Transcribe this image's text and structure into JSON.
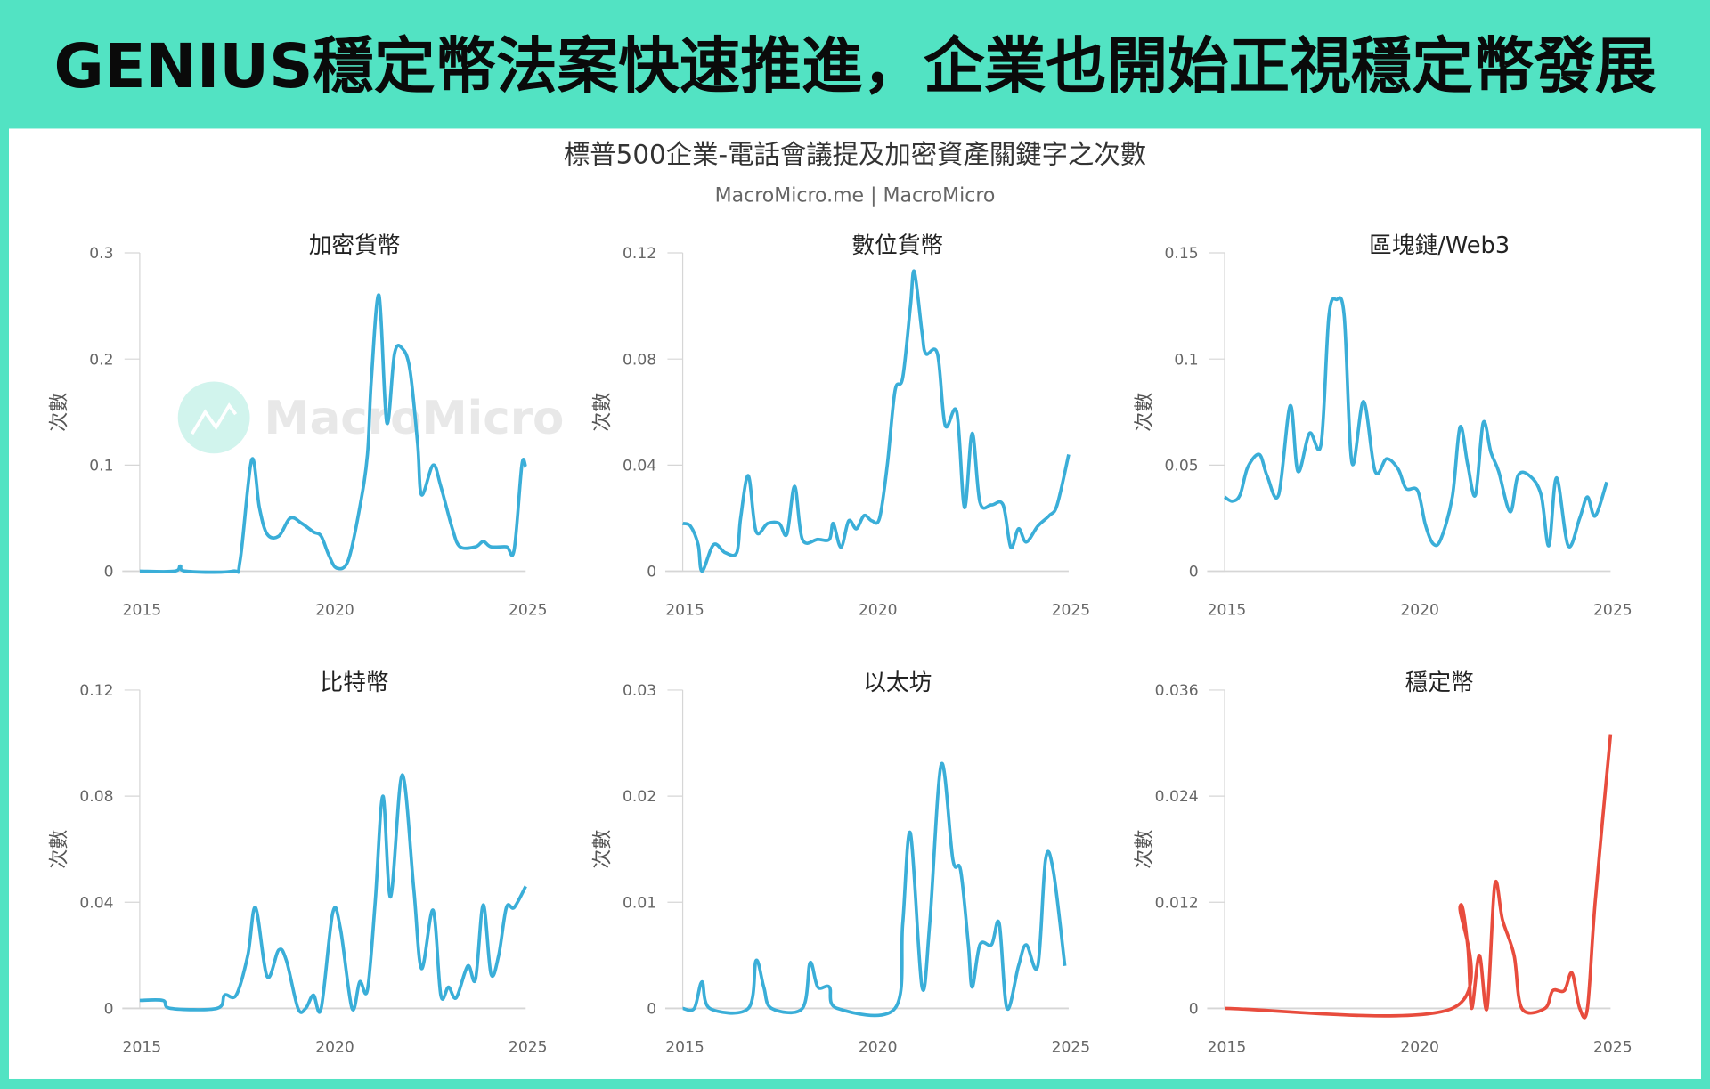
{
  "header": {
    "title": "GENIUS穩定幣法案快速推進，企業也開始正視穩定幣發展"
  },
  "colors": {
    "background": "#52e3c3",
    "series": "#3aaed8",
    "stablecoin": "#e84c3d",
    "axis": "#cccccc"
  },
  "watermark": {
    "text": "MacroMicro"
  },
  "chart_data": {
    "title": "標普500企業-電話會議提及加密資產關鍵字之次數",
    "subtitle": "MacroMicro.me | MacroMicro",
    "panels": [
      {
        "type": "line",
        "title": "加密貨幣",
        "ylabel": "次數",
        "xlim": [
          2015,
          2025
        ],
        "ylim": [
          0,
          0.3
        ],
        "xticks": [
          "2015",
          "2020",
          "2025"
        ],
        "yticks": [
          "0",
          "0.1",
          "0.2",
          "0.3"
        ],
        "color": "#3aaed8",
        "x": [
          2015,
          2015.9,
          2016.05,
          2016.2,
          2017.4,
          2017.6,
          2017.9,
          2018.1,
          2018.3,
          2018.6,
          2018.9,
          2019.2,
          2019.5,
          2019.7,
          2019.9,
          2020.1,
          2020.4,
          2020.7,
          2020.9,
          2021.0,
          2021.2,
          2021.4,
          2021.6,
          2021.8,
          2022.0,
          2022.2,
          2022.3,
          2022.6,
          2022.8,
          2023.1,
          2023.3,
          2023.7,
          2023.9,
          2024.1,
          2024.5,
          2024.7,
          2024.9,
          2025.0
        ],
        "y": [
          0,
          0,
          0.005,
          0,
          0,
          0.01,
          0.105,
          0.06,
          0.035,
          0.033,
          0.05,
          0.045,
          0.037,
          0.033,
          0.015,
          0.003,
          0.01,
          0.06,
          0.11,
          0.18,
          0.26,
          0.14,
          0.205,
          0.21,
          0.19,
          0.12,
          0.072,
          0.1,
          0.08,
          0.04,
          0.023,
          0.023,
          0.028,
          0.023,
          0.023,
          0.02,
          0.1,
          0.098
        ]
      },
      {
        "type": "line",
        "title": "數位貨幣",
        "ylabel": "次數",
        "xlim": [
          2015,
          2025
        ],
        "ylim": [
          0,
          0.12
        ],
        "xticks": [
          "2015",
          "2020",
          "2025"
        ],
        "yticks": [
          "0",
          "0.04",
          "0.08",
          "0.12"
        ],
        "color": "#3aaed8",
        "x": [
          2015,
          2015.2,
          2015.4,
          2015.5,
          2015.8,
          2016.1,
          2016.4,
          2016.5,
          2016.7,
          2016.9,
          2017.2,
          2017.5,
          2017.7,
          2017.9,
          2018.1,
          2018.5,
          2018.8,
          2018.9,
          2019.1,
          2019.3,
          2019.5,
          2019.7,
          2019.9,
          2020.1,
          2020.3,
          2020.5,
          2020.7,
          2020.9,
          2021.0,
          2021.2,
          2021.3,
          2021.6,
          2021.8,
          2022.1,
          2022.3,
          2022.5,
          2022.7,
          2023.0,
          2023.3,
          2023.5,
          2023.7,
          2023.9,
          2024.2,
          2024.5,
          2024.7,
          2025.0
        ],
        "y": [
          0.018,
          0.017,
          0.01,
          0,
          0.01,
          0.007,
          0.007,
          0.02,
          0.036,
          0.015,
          0.018,
          0.018,
          0.014,
          0.032,
          0.012,
          0.012,
          0.012,
          0.018,
          0.009,
          0.019,
          0.016,
          0.021,
          0.019,
          0.02,
          0.04,
          0.068,
          0.073,
          0.1,
          0.113,
          0.09,
          0.082,
          0.082,
          0.055,
          0.06,
          0.024,
          0.052,
          0.026,
          0.025,
          0.025,
          0.009,
          0.016,
          0.011,
          0.017,
          0.021,
          0.025,
          0.044
        ]
      },
      {
        "type": "line",
        "title": "區塊鏈/Web3",
        "ylabel": "次數",
        "xlim": [
          2015,
          2025
        ],
        "ylim": [
          0,
          0.15
        ],
        "xticks": [
          "2015",
          "2020",
          "2025"
        ],
        "yticks": [
          "0",
          "0.05",
          "0.1",
          "0.15"
        ],
        "color": "#3aaed8",
        "x": [
          2015,
          2015.2,
          2015.4,
          2015.6,
          2015.9,
          2016.1,
          2016.4,
          2016.7,
          2016.9,
          2017.2,
          2017.5,
          2017.7,
          2017.9,
          2018.1,
          2018.3,
          2018.6,
          2018.9,
          2019.2,
          2019.5,
          2019.7,
          2020.0,
          2020.2,
          2020.4,
          2020.6,
          2020.9,
          2021.1,
          2021.3,
          2021.5,
          2021.7,
          2021.9,
          2022.1,
          2022.4,
          2022.6,
          2022.9,
          2023.2,
          2023.4,
          2023.6,
          2023.9,
          2024.2,
          2024.4,
          2024.6,
          2024.9
        ],
        "y": [
          0.035,
          0.033,
          0.036,
          0.049,
          0.055,
          0.045,
          0.036,
          0.078,
          0.047,
          0.065,
          0.06,
          0.12,
          0.128,
          0.12,
          0.051,
          0.08,
          0.047,
          0.053,
          0.048,
          0.039,
          0.038,
          0.022,
          0.013,
          0.015,
          0.035,
          0.068,
          0.05,
          0.036,
          0.07,
          0.056,
          0.047,
          0.028,
          0.045,
          0.045,
          0.036,
          0.012,
          0.044,
          0.012,
          0.025,
          0.035,
          0.026,
          0.042
        ]
      },
      {
        "type": "line",
        "title": "比特幣",
        "ylabel": "次數",
        "xlim": [
          2015,
          2025
        ],
        "ylim": [
          0,
          0.12
        ],
        "xticks": [
          "2015",
          "2020",
          "2025"
        ],
        "yticks": [
          "0",
          "0.04",
          "0.08",
          "0.12"
        ],
        "color": "#3aaed8",
        "x": [
          2015,
          2015.6,
          2015.8,
          2017.0,
          2017.2,
          2017.5,
          2017.8,
          2018.0,
          2018.3,
          2018.6,
          2018.8,
          2019.1,
          2019.3,
          2019.5,
          2019.7,
          2020.0,
          2020.2,
          2020.5,
          2020.7,
          2020.9,
          2021.1,
          2021.3,
          2021.5,
          2021.8,
          2022.1,
          2022.3,
          2022.6,
          2022.8,
          2023.0,
          2023.2,
          2023.5,
          2023.7,
          2023.9,
          2024.1,
          2024.3,
          2024.5,
          2024.7,
          2025.0
        ],
        "y": [
          0.003,
          0.003,
          0,
          0,
          0.005,
          0.005,
          0.02,
          0.038,
          0.012,
          0.022,
          0.018,
          0,
          0,
          0.005,
          0,
          0.036,
          0.03,
          0,
          0.01,
          0.007,
          0.04,
          0.08,
          0.042,
          0.088,
          0.045,
          0.015,
          0.037,
          0.005,
          0.008,
          0.004,
          0.016,
          0.011,
          0.039,
          0.013,
          0.02,
          0.038,
          0.038,
          0.046
        ]
      },
      {
        "type": "line",
        "title": "以太坊",
        "ylabel": "次數",
        "xlim": [
          2015,
          2025
        ],
        "ylim": [
          0,
          0.03
        ],
        "xticks": [
          "2015",
          "2020",
          "2025"
        ],
        "yticks": [
          "0",
          "0.01",
          "0.02",
          "0.03"
        ],
        "color": "#3aaed8",
        "x": [
          2015,
          2015.3,
          2015.5,
          2015.7,
          2016.7,
          2016.9,
          2017.1,
          2017.3,
          2018.1,
          2018.3,
          2018.5,
          2018.8,
          2019.0,
          2020.5,
          2020.7,
          2020.9,
          2021.2,
          2021.4,
          2021.7,
          2022.0,
          2022.2,
          2022.4,
          2022.5,
          2022.7,
          2023.0,
          2023.2,
          2023.4,
          2023.7,
          2023.9,
          2024.2,
          2024.4,
          2024.6,
          2024.9
        ],
        "y": [
          0,
          0,
          0.0025,
          0,
          0,
          0.0045,
          0.002,
          0,
          0,
          0.0043,
          0.002,
          0.002,
          0,
          0,
          0.008,
          0.0165,
          0.002,
          0.008,
          0.023,
          0.014,
          0.013,
          0.006,
          0.002,
          0.006,
          0.006,
          0.008,
          0,
          0.004,
          0.006,
          0.004,
          0.014,
          0.013,
          0.004
        ]
      },
      {
        "type": "line",
        "title": "穩定幣",
        "ylabel": "次數",
        "xlim": [
          2015,
          2025
        ],
        "ylim": [
          0,
          0.036
        ],
        "xticks": [
          "2015",
          "2020",
          "2025"
        ],
        "yticks": [
          "0",
          "0.012",
          "0.024",
          "0.036"
        ],
        "color": "#e84c3d",
        "x": [
          2015,
          2020.9,
          2021.1,
          2021.3,
          2021.4,
          2021.6,
          2021.8,
          2022.0,
          2022.2,
          2022.5,
          2022.7,
          2023.3,
          2023.5,
          2023.8,
          2024.0,
          2024.2,
          2024.4,
          2024.6,
          2025.0
        ],
        "y": [
          0,
          0,
          0.0115,
          0.007,
          0,
          0.006,
          0,
          0.014,
          0.01,
          0.006,
          0,
          0,
          0.002,
          0.002,
          0.004,
          0,
          0,
          0.012,
          0.031
        ]
      }
    ]
  }
}
